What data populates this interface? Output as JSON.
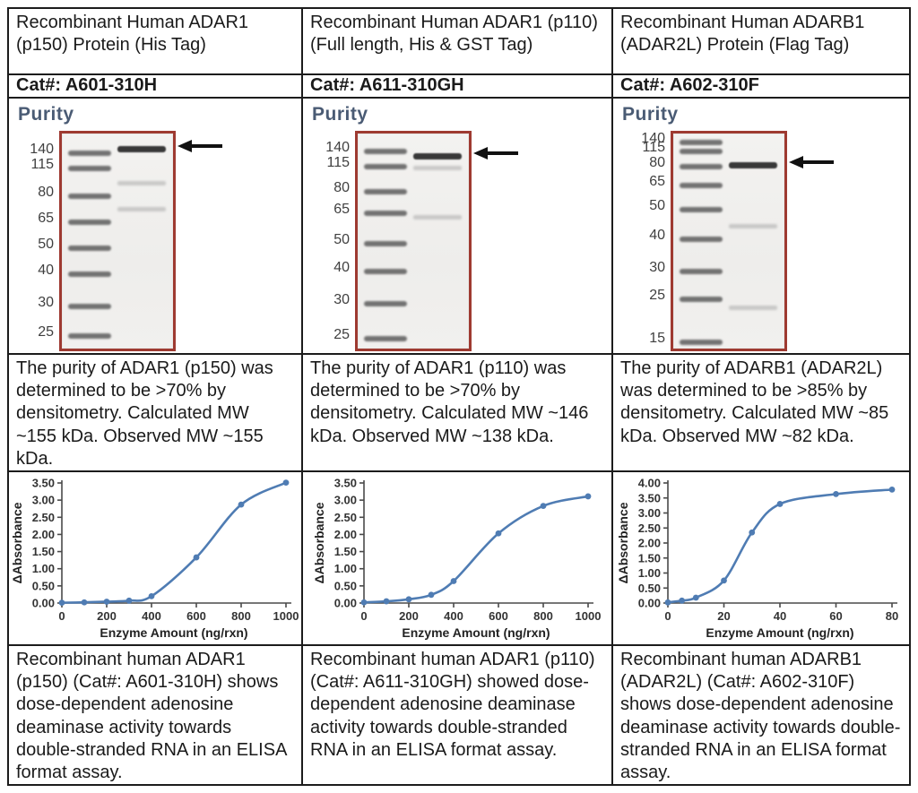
{
  "colors": {
    "table_border": "#1c1c1c",
    "purity_heading": "#4a5b74",
    "gel_border": "#9e3a31",
    "chart_line": "#4f7cb3",
    "arrow": "#111111"
  },
  "columns": [
    {
      "title": "Recombinant Human ADAR1 (p150) Protein (His Tag)",
      "cat": "Cat#: A601-310H",
      "purity_heading": "Purity",
      "gel": {
        "markers": [
          140,
          115,
          80,
          65,
          50,
          40,
          30,
          25
        ],
        "band_kda": "~155 kDa"
      },
      "purity_text": "The purity of ADAR1 (p150) was determined to be >70% by densitometry. Calculated MW ~155 kDa. Observed MW ~155 kDa.",
      "activity_text": "Recombinant human ADAR1 (p150) (Cat#: A601-310H) shows dose-dependent adenosine deaminase activity towards double-stranded RNA in an ELISA format assay."
    },
    {
      "title": "Recombinant Human ADAR1 (p110) (Full length, His & GST Tag)",
      "cat": "Cat#: A611-310GH",
      "purity_heading": "Purity",
      "gel": {
        "markers": [
          140,
          115,
          80,
          65,
          50,
          40,
          30,
          25
        ],
        "band_kda": "~138 kDa"
      },
      "purity_text": "The purity of ADAR1 (p110) was determined to be >70% by densitometry. Calculated MW ~146 kDa. Observed MW ~138 kDa.",
      "activity_text": "Recombinant human ADAR1 (p110) (Cat#: A611-310GH) showed dose-dependent adenosine deaminase activity towards double-stranded RNA in an ELISA format assay."
    },
    {
      "title": "Recombinant Human ADARB1 (ADAR2L) Protein (Flag Tag)",
      "cat": "Cat#: A602-310F",
      "purity_heading": "Purity",
      "gel": {
        "markers": [
          140,
          115,
          80,
          65,
          50,
          40,
          30,
          25,
          15
        ],
        "band_kda": "~82 kDa"
      },
      "purity_text": "The purity of ADARB1 (ADAR2L) was determined to be >85% by densitometry. Calculated MW ~85 kDa. Observed MW ~82 kDa.",
      "activity_text": "Recombinant human ADARB1 (ADAR2L) (Cat#: A602-310F) shows dose-dependent adenosine deaminase activity towards double-stranded RNA in an ELISA format assay."
    }
  ],
  "chart_data": [
    {
      "type": "line",
      "x": [
        0,
        100,
        200,
        300,
        400,
        600,
        800,
        1000
      ],
      "y": [
        0.01,
        0.02,
        0.04,
        0.07,
        0.2,
        1.33,
        2.87,
        3.51
      ],
      "xlabel": "Enzyme Amount (ng/rxn)",
      "ylabel": "ΔAbsorbance",
      "xlim": [
        0,
        1000
      ],
      "xticks": [
        0,
        200,
        400,
        600,
        800,
        1000
      ],
      "ylim": [
        0,
        3.5
      ],
      "ytick_step": 0.5,
      "grid": false,
      "legend": "none",
      "line_color": "#4f7cb3"
    },
    {
      "type": "line",
      "x": [
        0,
        100,
        200,
        300,
        400,
        600,
        800,
        1000
      ],
      "y": [
        0.02,
        0.05,
        0.11,
        0.24,
        0.64,
        2.03,
        2.83,
        3.11
      ],
      "xlabel": "Enzyme Amount (ng/rxn)",
      "ylabel": "ΔAbsorbance",
      "xlim": [
        0,
        1000
      ],
      "xticks": [
        0,
        200,
        400,
        600,
        800,
        1000
      ],
      "ylim": [
        0,
        3.5
      ],
      "ytick_step": 0.5,
      "grid": false,
      "legend": "none",
      "line_color": "#4f7cb3"
    },
    {
      "type": "line",
      "x": [
        0,
        5,
        10,
        20,
        30,
        40,
        60,
        80
      ],
      "y": [
        0.02,
        0.08,
        0.18,
        0.75,
        2.35,
        3.3,
        3.63,
        3.78
      ],
      "xlabel": "Enzyme Amount (ng/rxn)",
      "ylabel": "ΔAbsorbance",
      "xlim": [
        0,
        80
      ],
      "xticks": [
        0,
        20,
        40,
        60,
        80
      ],
      "ylim": [
        0,
        4.0
      ],
      "ytick_step": 0.5,
      "grid": false,
      "legend": "none",
      "line_color": "#4f7cb3"
    }
  ]
}
